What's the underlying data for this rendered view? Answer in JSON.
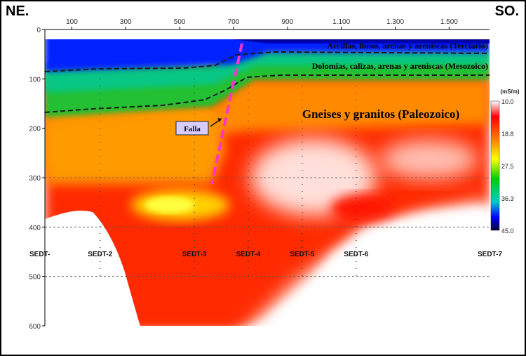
{
  "corner_labels": {
    "left": "NE.",
    "right": "SO."
  },
  "chart_data": {
    "type": "heatmap",
    "title": "",
    "xlabel": "",
    "ylabel": "",
    "xlim": [
      0,
      1650
    ],
    "ylim": [
      600,
      0
    ],
    "x_ticks": [
      100,
      300,
      500,
      700,
      900,
      1100,
      1300,
      1500
    ],
    "x_tick_labels": [
      "100",
      "300",
      "500",
      "700",
      "900",
      "1.100",
      "1.300",
      "1.500"
    ],
    "y_ticks": [
      0,
      100,
      200,
      300,
      400,
      500,
      600
    ],
    "y_tick_labels": [
      "0",
      "100",
      "200",
      "300",
      "400",
      "500",
      "600"
    ],
    "colorbar": {
      "unit": "(mS/m)",
      "ticks": [
        "10.0",
        "18.8",
        "27.5",
        "36.3",
        "45.0"
      ]
    },
    "layers": [
      {
        "label": "Arcillas, limos, arenas y areniscas (Terciario)",
        "color": "#ffffff"
      },
      {
        "label": "Dolomías, calizas, arenas y areniscas (Mesozoico)",
        "color": "#ffffff"
      },
      {
        "label": "Gneises y granitos (Paleozoico)",
        "color": "#fff2c0"
      }
    ],
    "fault": {
      "label": "Falla",
      "color": "#ff33cc"
    },
    "wells": [
      {
        "label": "SEDT-",
        "x": 0
      },
      {
        "label": "SEDT-2",
        "x": 205
      },
      {
        "label": "SEDT-3",
        "x": 555
      },
      {
        "label": "SEDT-4",
        "x": 755
      },
      {
        "label": "SEDT-5",
        "x": 955
      },
      {
        "label": "SEDT-6",
        "x": 1155
      },
      {
        "label": "SEDT-7",
        "x": 1650
      }
    ],
    "grid": true,
    "colormap": [
      "#000033",
      "#0000ff",
      "#00c8c8",
      "#00d000",
      "#f0f000",
      "#ff8000",
      "#ff0000",
      "#ffffff"
    ]
  }
}
